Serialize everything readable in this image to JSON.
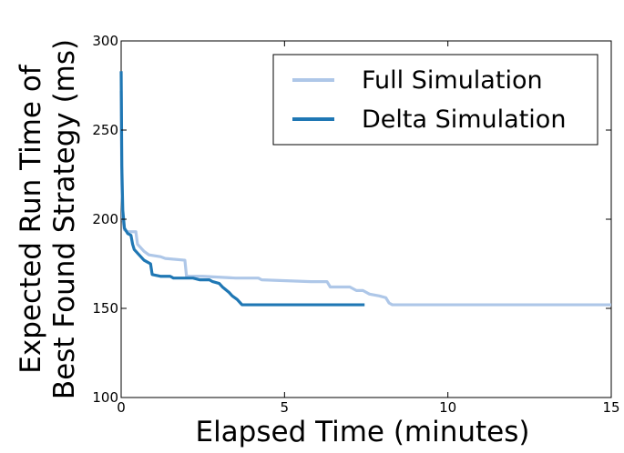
{
  "chart_data": {
    "type": "line",
    "title": "",
    "xlabel": "Elapsed Time (minutes)",
    "ylabel_lines": [
      "Expected Run Time of",
      "Best Found Strategy (ms)"
    ],
    "xlim": [
      0,
      15
    ],
    "ylim": [
      100,
      300
    ],
    "x_ticks": [
      0,
      5,
      10,
      15
    ],
    "y_ticks": [
      100,
      150,
      200,
      250,
      300
    ],
    "grid": false,
    "legend_position": "top-right",
    "series": [
      {
        "name": "Full Simulation",
        "color": "#aec7e8",
        "points": [
          [
            0,
            272
          ],
          [
            0.02,
            220
          ],
          [
            0.05,
            200
          ],
          [
            0.1,
            194
          ],
          [
            0.2,
            193
          ],
          [
            0.45,
            193
          ],
          [
            0.5,
            186
          ],
          [
            0.7,
            182
          ],
          [
            0.85,
            180
          ],
          [
            1.2,
            179
          ],
          [
            1.35,
            178
          ],
          [
            1.95,
            177
          ],
          [
            2.0,
            168
          ],
          [
            2.2,
            168
          ],
          [
            2.5,
            168
          ],
          [
            3.5,
            167
          ],
          [
            4.2,
            167
          ],
          [
            4.3,
            166
          ],
          [
            5.8,
            165
          ],
          [
            6.3,
            165
          ],
          [
            6.4,
            162
          ],
          [
            7.0,
            162
          ],
          [
            7.2,
            160
          ],
          [
            7.4,
            160
          ],
          [
            7.6,
            158
          ],
          [
            7.9,
            157
          ],
          [
            8.1,
            156
          ],
          [
            8.2,
            153
          ],
          [
            8.3,
            152
          ],
          [
            9.0,
            152
          ],
          [
            15.0,
            152
          ]
        ]
      },
      {
        "name": "Delta Simulation",
        "color": "#1f77b4",
        "points": [
          [
            0,
            283
          ],
          [
            0.02,
            230
          ],
          [
            0.05,
            205
          ],
          [
            0.1,
            195
          ],
          [
            0.2,
            192
          ],
          [
            0.3,
            191
          ],
          [
            0.35,
            186
          ],
          [
            0.4,
            183
          ],
          [
            0.55,
            180
          ],
          [
            0.7,
            177
          ],
          [
            0.8,
            176
          ],
          [
            0.9,
            175
          ],
          [
            0.95,
            169
          ],
          [
            1.2,
            168
          ],
          [
            1.5,
            168
          ],
          [
            1.6,
            167
          ],
          [
            2.2,
            167
          ],
          [
            2.4,
            166
          ],
          [
            2.7,
            166
          ],
          [
            2.8,
            165
          ],
          [
            3.0,
            164
          ],
          [
            3.1,
            162
          ],
          [
            3.3,
            159
          ],
          [
            3.4,
            157
          ],
          [
            3.55,
            155
          ],
          [
            3.65,
            153
          ],
          [
            3.7,
            152
          ],
          [
            4.5,
            152
          ],
          [
            7.45,
            152
          ]
        ]
      }
    ]
  }
}
